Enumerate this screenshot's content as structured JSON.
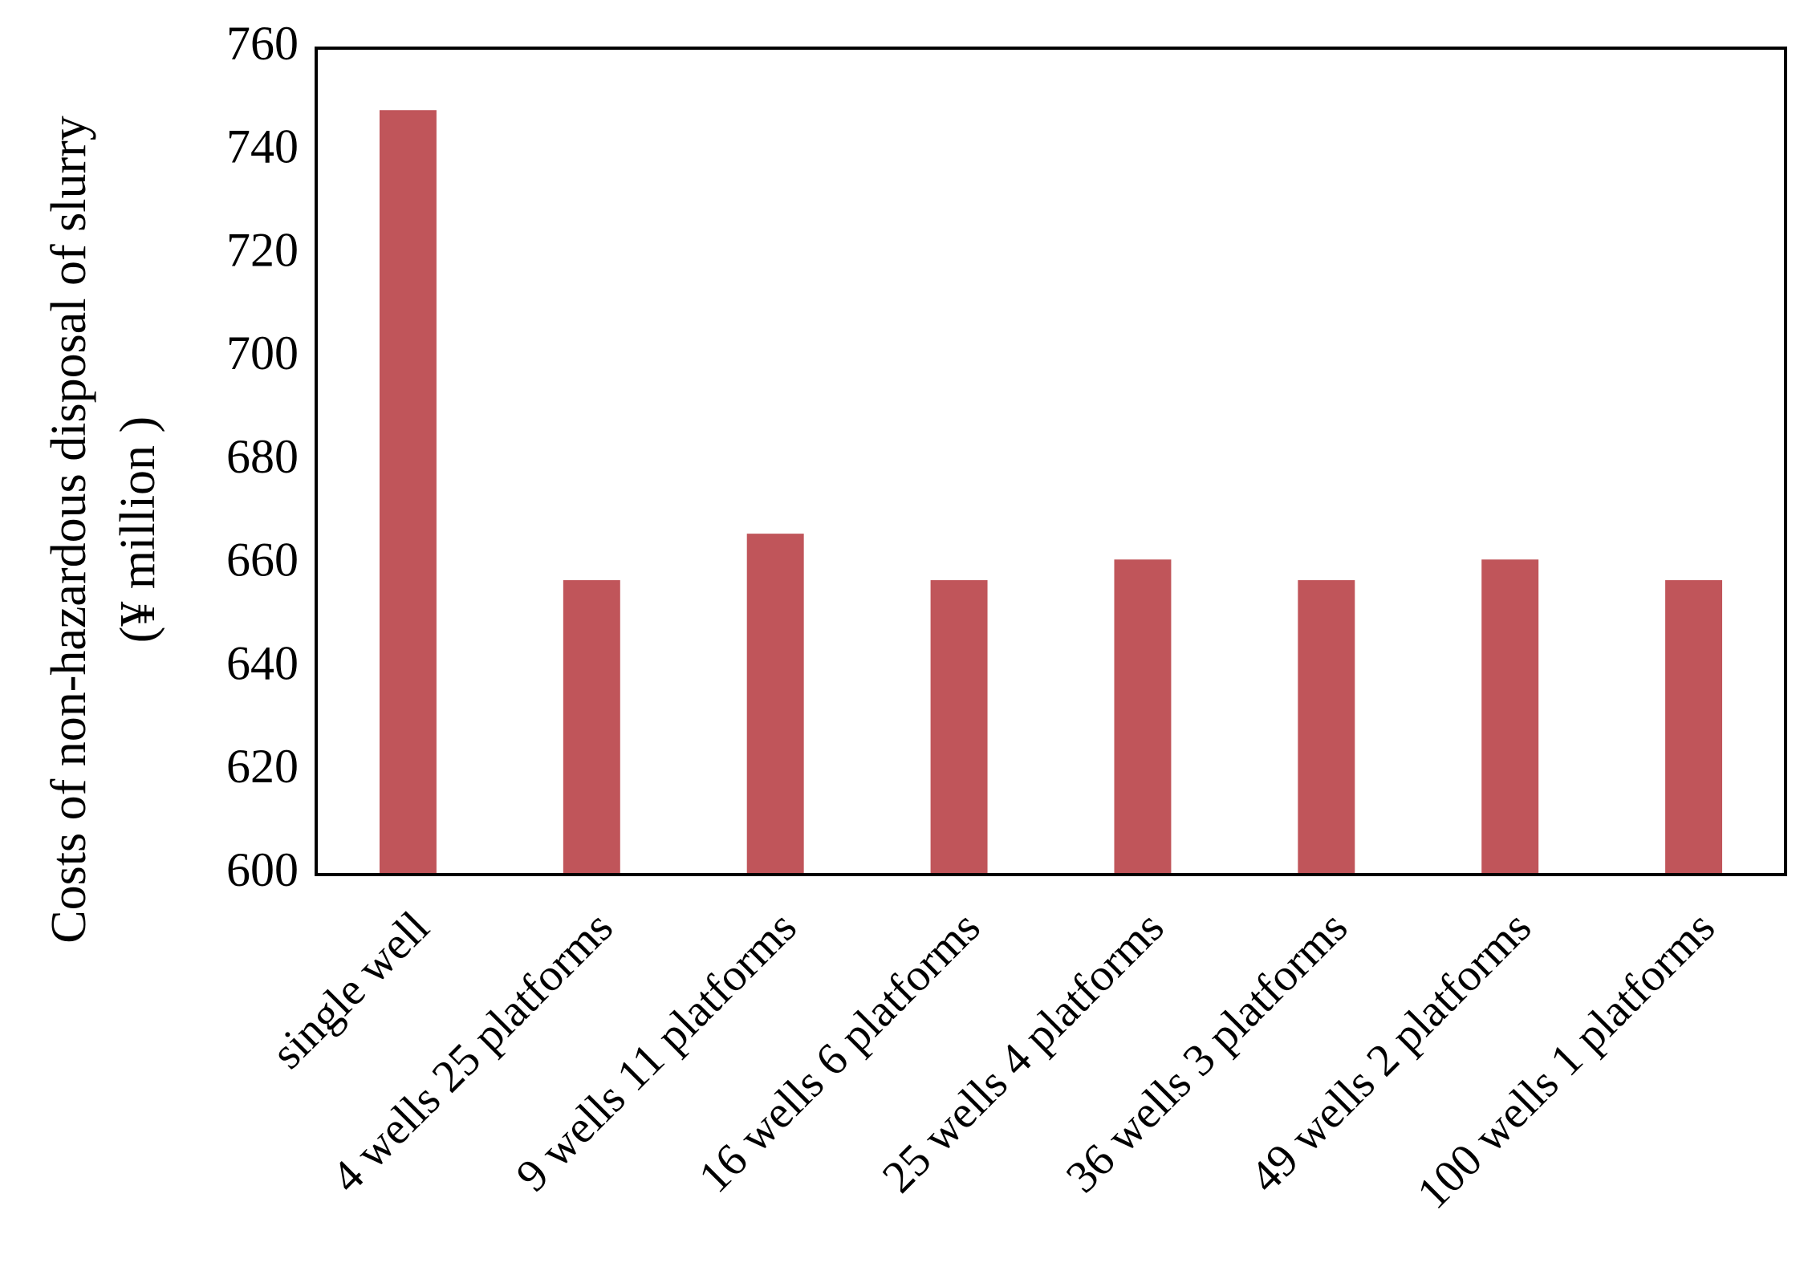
{
  "chart_data": {
    "type": "bar",
    "ylabel": [
      "Costs of non-hazardous disposal of slurry",
      "(¥ million )"
    ],
    "categories": [
      "single well",
      "4 wells 25 platforms",
      "9 wells 11 platforms",
      "16 wells 6 platforms",
      "25 wells 4 platforms",
      "36 wells 3 platforms",
      "49 wells 2 platforms",
      "100 wells 1 platforms"
    ],
    "values": [
      748,
      657,
      666,
      657,
      661,
      657,
      661,
      657
    ],
    "color": "#c0555a",
    "ylim": [
      600,
      760
    ],
    "yticks": [
      600,
      620,
      640,
      660,
      680,
      700,
      720,
      740,
      760
    ],
    "grid": false
  }
}
